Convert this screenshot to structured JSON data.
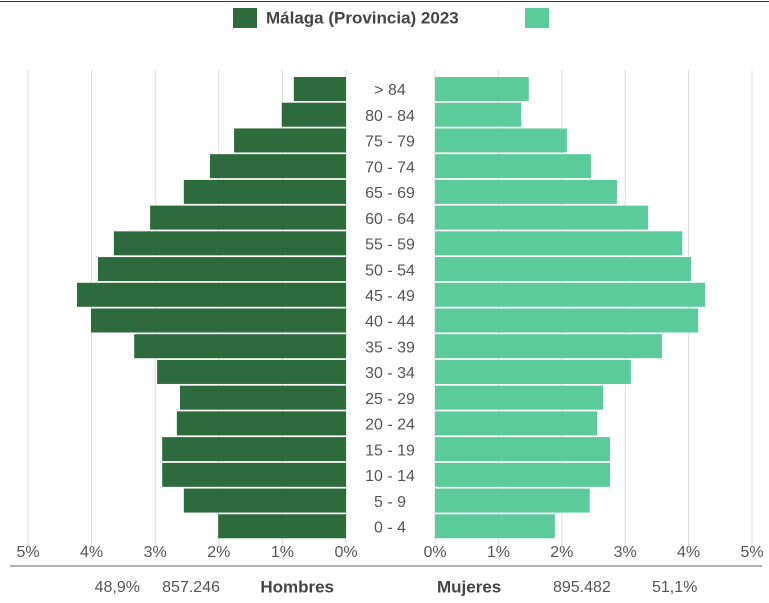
{
  "chart_data": {
    "type": "pyramid",
    "legend_label": "Málaga (Provincia) 2023",
    "categories": [
      "> 84",
      "80 - 84",
      "75 - 79",
      "70 - 74",
      "65 - 69",
      "60 - 64",
      "55 - 59",
      "50 - 54",
      "45 - 49",
      "40 - 44",
      "35 - 39",
      "30 - 34",
      "25 - 29",
      "20 - 24",
      "15 - 19",
      "10 - 14",
      "5 - 9",
      "0 - 4"
    ],
    "series": [
      {
        "name": "Hombres",
        "color": "#2e6b3c",
        "side": "left",
        "total": "857.246",
        "share": "48,9%",
        "values": [
          0.82,
          1.01,
          1.76,
          2.14,
          2.55,
          3.08,
          3.65,
          3.9,
          4.23,
          4.01,
          3.33,
          2.97,
          2.61,
          2.66,
          2.89,
          2.89,
          2.55,
          2.01
        ]
      },
      {
        "name": "Mujeres",
        "color": "#5ccb9c",
        "side": "right",
        "total": "895.482",
        "share": "51,1%",
        "values": [
          1.48,
          1.36,
          2.08,
          2.46,
          2.87,
          3.36,
          3.9,
          4.04,
          4.26,
          4.15,
          3.58,
          3.09,
          2.65,
          2.56,
          2.76,
          2.76,
          2.44,
          1.89
        ]
      }
    ],
    "xlim": [
      0,
      5
    ],
    "xticks": [
      {
        "value": 0,
        "label": "0%"
      },
      {
        "value": 1,
        "label": "1%"
      },
      {
        "value": 2,
        "label": "2%"
      },
      {
        "value": 3,
        "label": "3%"
      },
      {
        "value": 4,
        "label": "4%"
      },
      {
        "value": 5,
        "label": "5%"
      }
    ],
    "grid": true
  }
}
